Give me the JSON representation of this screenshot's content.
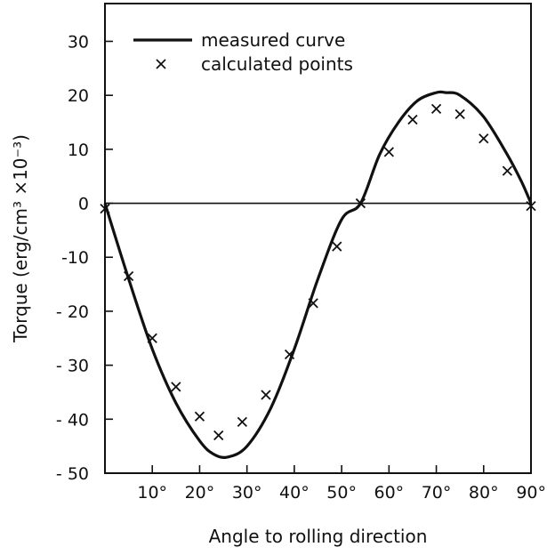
{
  "chart_data": {
    "type": "line",
    "xlabel": "Angle to rolling direction",
    "ylabel": "Torque (erg/cm³ ×10⁻³)",
    "xlim": [
      0,
      90
    ],
    "ylim": [
      -50,
      37
    ],
    "x_ticks": [
      10,
      20,
      30,
      40,
      50,
      60,
      70,
      80,
      90
    ],
    "x_tick_labels": [
      "10°",
      "20°",
      "30°",
      "40°",
      "50°",
      "60°",
      "70°",
      "80°",
      "90°"
    ],
    "y_ticks": [
      30,
      20,
      10,
      0,
      -10,
      -20,
      -30,
      -40,
      -50
    ],
    "y_tick_labels": [
      "30",
      "20",
      "10",
      "0",
      "-10",
      "- 20",
      "- 30",
      "- 40",
      "- 50"
    ],
    "zero_line": true,
    "grid": false,
    "legend_position": "top-left",
    "series": [
      {
        "name": "measured curve",
        "style": "line",
        "x": [
          0,
          5,
          10,
          15,
          20,
          23,
          26,
          30,
          35,
          40,
          45,
          50,
          54,
          58,
          62,
          66,
          70,
          72,
          75,
          80,
          85,
          88,
          90
        ],
        "y": [
          0,
          -14,
          -27,
          -37,
          -44,
          -46.5,
          -47,
          -45,
          -38,
          -27,
          -14,
          -3,
          0,
          9,
          15,
          19,
          20.5,
          20.5,
          20,
          16,
          9,
          4,
          0
        ]
      },
      {
        "name": "calculated points",
        "style": "marker-x",
        "x": [
          0,
          5,
          10,
          15,
          20,
          24,
          29,
          34,
          39,
          44,
          49,
          54,
          60,
          65,
          70,
          75,
          80,
          85,
          90
        ],
        "y": [
          -1,
          -13.5,
          -25,
          -34,
          -39.5,
          -43,
          -40.5,
          -35.5,
          -28,
          -18.5,
          -8,
          0,
          9.5,
          15.5,
          17.5,
          16.5,
          12,
          6,
          -0.5
        ]
      }
    ]
  }
}
